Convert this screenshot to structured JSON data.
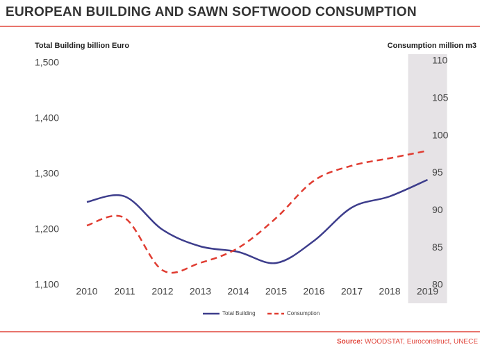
{
  "chart_data": {
    "type": "line",
    "title": "EUROPEAN BUILDING AND SAWN SOFTWOOD CONSUMPTION",
    "y_label": "Total Building billion Euro",
    "y2_label": "Consumption million m3",
    "source_label": "Source:",
    "source": "WOODSTAT, Euroconstruct, UNECE",
    "categories": [
      "2010",
      "2011",
      "2012",
      "2013",
      "2014",
      "2015",
      "2016",
      "2017",
      "2018",
      "2019"
    ],
    "series": [
      {
        "name": "Total Building",
        "color": "#3d3d8c",
        "dash": false,
        "values": [
          1250,
          1260,
          1200,
          1170,
          1160,
          1140,
          1180,
          1240,
          1260,
          1290
        ]
      },
      {
        "name": "Consumption",
        "color": "#e03c31",
        "dash": true,
        "axis": "y2",
        "values": [
          88,
          89,
          82,
          83,
          85,
          89,
          94,
          96,
          97,
          98
        ]
      }
    ],
    "ylim": [
      1100,
      1500
    ],
    "yticks": [
      {
        "value": 1100,
        "label": "1,100"
      },
      {
        "value": 1200,
        "label": "1,200"
      },
      {
        "value": 1300,
        "label": "1,300"
      },
      {
        "value": 1400,
        "label": "1,400"
      },
      {
        "value": 1500,
        "label": "1,500"
      }
    ],
    "y2lim": [
      80,
      110
    ],
    "y2ticks": [
      80,
      85,
      90,
      95,
      100,
      105,
      110
    ],
    "grid": false,
    "legend": "bottom"
  }
}
